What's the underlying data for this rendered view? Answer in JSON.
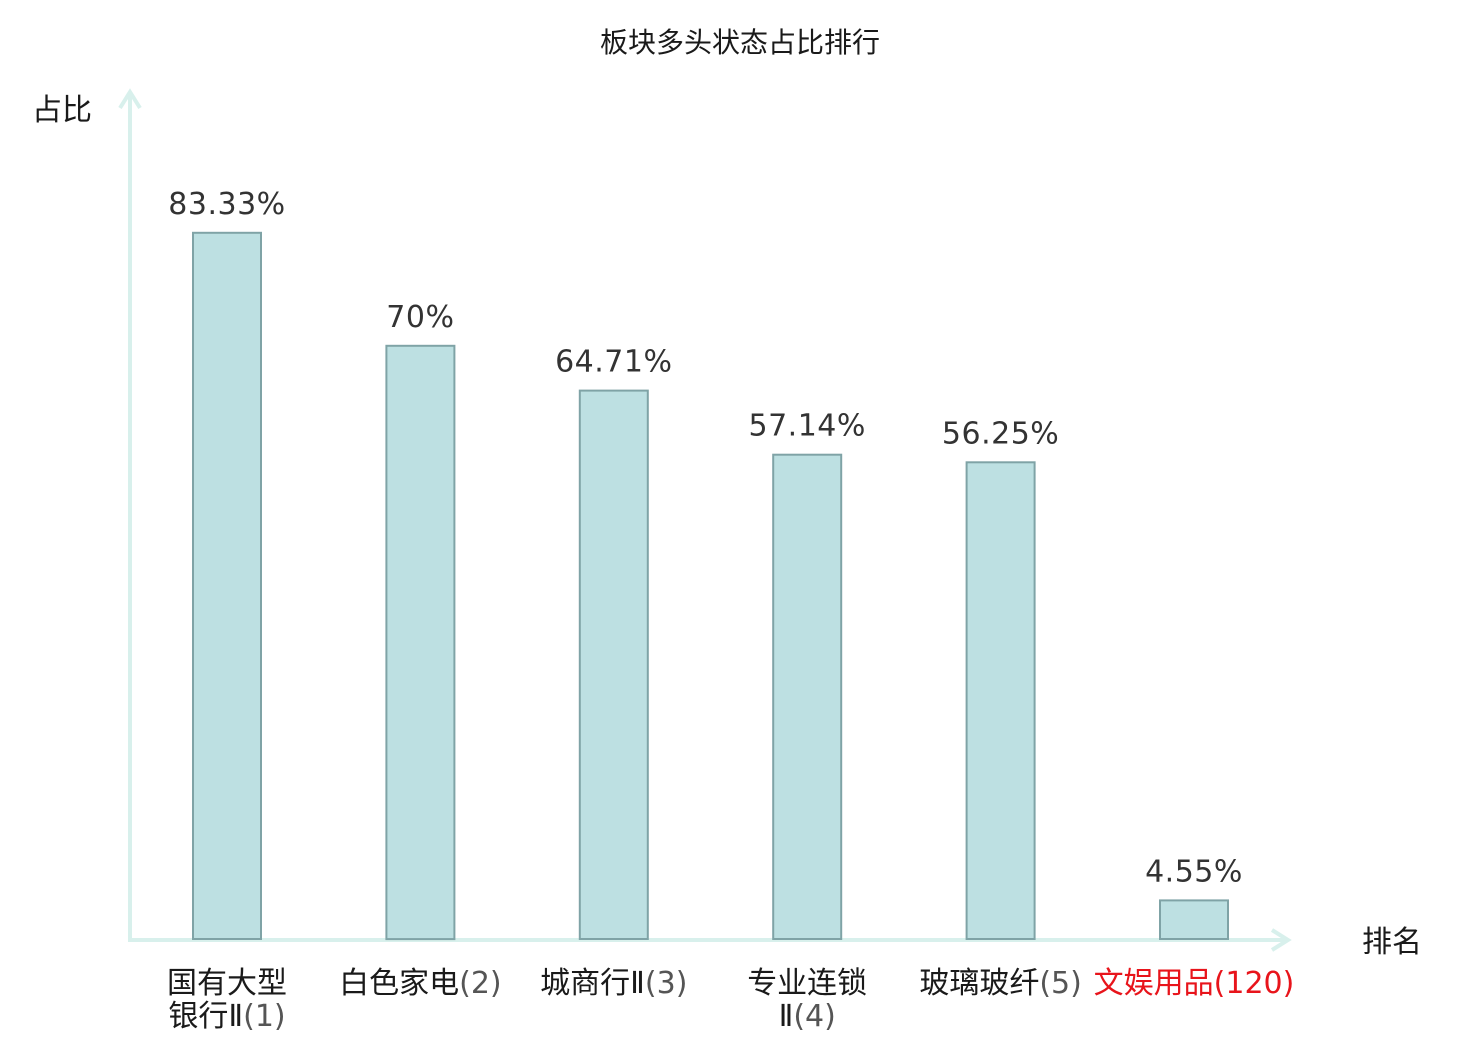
{
  "chart_data": {
    "type": "bar",
    "title": "板块多头状态占比排行",
    "ylabel": "占比",
    "xlabel": "排名",
    "ylim": [
      0,
      100
    ],
    "grid": false,
    "categories": [
      {
        "name": "国有大型银行Ⅱ",
        "rank": "(1)",
        "highlight": false
      },
      {
        "name": "白色家电",
        "rank": "(2)",
        "highlight": false
      },
      {
        "name": "城商行Ⅱ",
        "rank": "(3)",
        "highlight": false
      },
      {
        "name": "专业连锁Ⅱ",
        "rank": "(4)",
        "highlight": false
      },
      {
        "name": "玻璃玻纤",
        "rank": "(5)",
        "highlight": false
      },
      {
        "name": "文娱用品",
        "rank": "(120)",
        "highlight": true
      }
    ],
    "values": [
      83.33,
      70,
      64.71,
      57.14,
      56.25,
      4.55
    ],
    "value_labels": [
      "83.33%",
      "70%",
      "64.71%",
      "57.14%",
      "56.25%",
      "4.55%"
    ],
    "colors": {
      "bar_fill": "#bde0e2",
      "bar_stroke": "#7fa3a6",
      "axis": "#d8f0ec",
      "highlight_text": "#e8141b"
    }
  }
}
